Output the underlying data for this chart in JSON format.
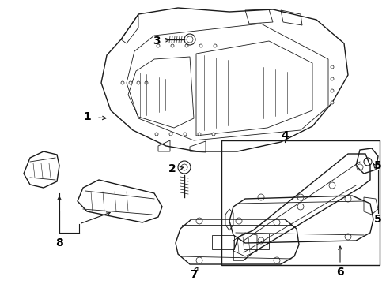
{
  "background_color": "#ffffff",
  "line_color": "#1a1a1a",
  "label_color": "#000000",
  "fig_width": 4.89,
  "fig_height": 3.6,
  "dpi": 100,
  "label_fontsize": 10
}
